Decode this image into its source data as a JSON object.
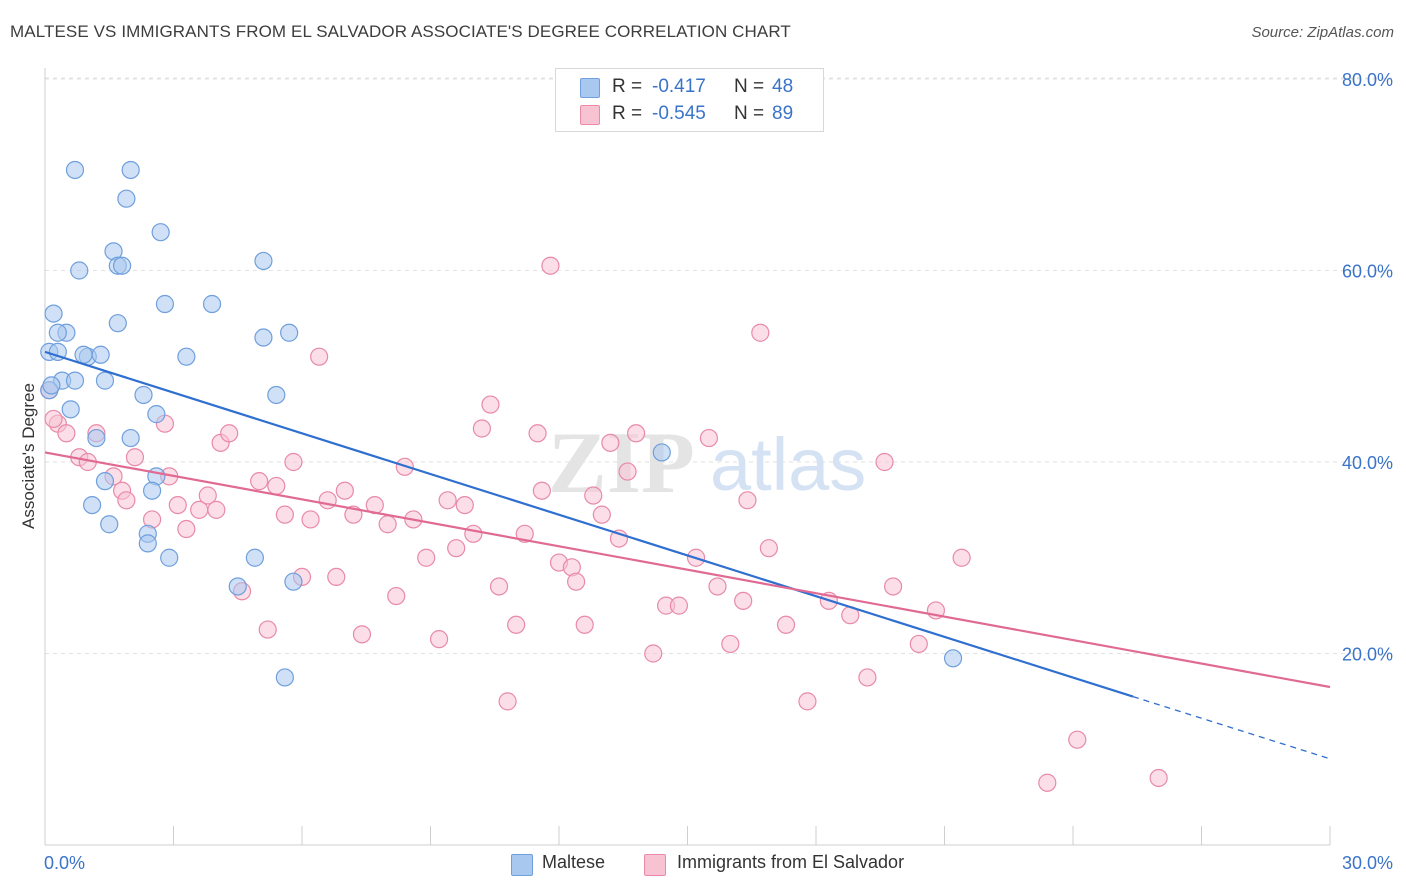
{
  "header": {
    "title": "MALTESE VS IMMIGRANTS FROM EL SALVADOR ASSOCIATE'S DEGREE CORRELATION CHART",
    "source": "Source: ZipAtlas.com"
  },
  "legend_top": {
    "rows": [
      {
        "r_label": "R =",
        "r_value": "-0.417",
        "n_label": "N =",
        "n_value": "48",
        "color": "#a9c8f0",
        "border": "#6f9fdc"
      },
      {
        "r_label": "R =",
        "r_value": "-0.545",
        "n_label": "N =",
        "n_value": "89",
        "color": "#f7c3d3",
        "border": "#e88aa8"
      }
    ]
  },
  "legend_bottom": {
    "items": [
      {
        "label": "Maltese",
        "color": "#a9c8f0",
        "border": "#6f9fdc"
      },
      {
        "label": "Immigrants from El Salvador",
        "color": "#f7c3d3",
        "border": "#e88aa8"
      }
    ]
  },
  "watermark": {
    "zip": "ZIP",
    "atlas": "atlas"
  },
  "chart_data": {
    "type": "scatter",
    "title": "MALTESE VS IMMIGRANTS FROM EL SALVADOR ASSOCIATE'S DEGREE CORRELATION CHART",
    "xlabel": "",
    "ylabel": "Associate's Degree",
    "xlim": [
      0,
      30
    ],
    "ylim": [
      0,
      82
    ],
    "x_tick_labels": [
      "0.0%",
      "30.0%"
    ],
    "y_ticks": [
      20,
      40,
      60,
      80
    ],
    "y_tick_labels": [
      "20.0%",
      "40.0%",
      "60.0%",
      "80.0%"
    ],
    "grid": true,
    "legend_placement": "top-center",
    "series": [
      {
        "name": "Maltese",
        "color": "#a9c8f0",
        "edge_color": "#6f9fdc",
        "line_color": "#2f6fd0",
        "R": -0.417,
        "N": 48,
        "trend": {
          "x0": 0,
          "y0": 51.5,
          "x1": 25.4,
          "y1": 15.5,
          "dashed_to_x": 30,
          "dashed_to_y": 9.0
        },
        "points": [
          [
            0.7,
            70.5
          ],
          [
            2.0,
            70.5
          ],
          [
            1.9,
            67.5
          ],
          [
            2.7,
            64.0
          ],
          [
            1.6,
            62.0
          ],
          [
            5.1,
            61.0
          ],
          [
            0.8,
            60.0
          ],
          [
            1.7,
            60.5
          ],
          [
            2.8,
            56.5
          ],
          [
            3.9,
            56.5
          ],
          [
            0.2,
            55.5
          ],
          [
            1.7,
            54.5
          ],
          [
            0.5,
            53.5
          ],
          [
            5.7,
            53.5
          ],
          [
            5.1,
            53.0
          ],
          [
            0.1,
            51.5
          ],
          [
            0.3,
            51.5
          ],
          [
            1.0,
            51.0
          ],
          [
            1.3,
            51.2
          ],
          [
            3.3,
            51.0
          ],
          [
            0.4,
            48.5
          ],
          [
            0.7,
            48.5
          ],
          [
            1.4,
            48.5
          ],
          [
            0.1,
            47.5
          ],
          [
            2.3,
            47.0
          ],
          [
            5.4,
            47.0
          ],
          [
            0.6,
            45.5
          ],
          [
            2.6,
            45.0
          ],
          [
            1.2,
            42.5
          ],
          [
            2.0,
            42.5
          ],
          [
            14.4,
            41.0
          ],
          [
            1.4,
            38.0
          ],
          [
            2.6,
            38.5
          ],
          [
            2.5,
            37.0
          ],
          [
            1.1,
            35.5
          ],
          [
            1.5,
            33.5
          ],
          [
            2.4,
            32.5
          ],
          [
            2.4,
            31.5
          ],
          [
            2.9,
            30.0
          ],
          [
            4.9,
            30.0
          ],
          [
            4.5,
            27.0
          ],
          [
            5.8,
            27.5
          ],
          [
            5.6,
            17.5
          ],
          [
            21.2,
            19.5
          ],
          [
            0.15,
            48.0
          ],
          [
            0.9,
            51.2
          ],
          [
            1.8,
            60.5
          ],
          [
            0.3,
            53.5
          ]
        ]
      },
      {
        "name": "Immigrants from El Salvador",
        "color": "#f7c3d3",
        "edge_color": "#e88aa8",
        "line_color": "#e06a93",
        "R": -0.545,
        "N": 89,
        "trend": {
          "x0": 0,
          "y0": 41.0,
          "x1": 30,
          "y1": 16.5
        },
        "points": [
          [
            0.1,
            47.5
          ],
          [
            0.3,
            44.0
          ],
          [
            0.5,
            43.0
          ],
          [
            0.8,
            40.5
          ],
          [
            1.0,
            40.0
          ],
          [
            1.2,
            43.0
          ],
          [
            1.6,
            38.5
          ],
          [
            1.8,
            37.0
          ],
          [
            1.9,
            36.0
          ],
          [
            2.1,
            40.5
          ],
          [
            2.5,
            34.0
          ],
          [
            2.8,
            44.0
          ],
          [
            2.9,
            38.5
          ],
          [
            3.1,
            35.5
          ],
          [
            3.3,
            33.0
          ],
          [
            3.6,
            35.0
          ],
          [
            3.8,
            36.5
          ],
          [
            4.0,
            35.0
          ],
          [
            4.1,
            42.0
          ],
          [
            4.3,
            43.0
          ],
          [
            4.6,
            26.5
          ],
          [
            5.0,
            38.0
          ],
          [
            5.2,
            22.5
          ],
          [
            5.4,
            37.5
          ],
          [
            5.6,
            34.5
          ],
          [
            5.8,
            40.0
          ],
          [
            6.0,
            28.0
          ],
          [
            6.2,
            34.0
          ],
          [
            6.4,
            51.0
          ],
          [
            6.6,
            36.0
          ],
          [
            6.8,
            28.0
          ],
          [
            7.0,
            37.0
          ],
          [
            7.2,
            34.5
          ],
          [
            7.4,
            22.0
          ],
          [
            7.7,
            35.5
          ],
          [
            8.0,
            33.5
          ],
          [
            8.2,
            26.0
          ],
          [
            8.4,
            39.5
          ],
          [
            8.6,
            34.0
          ],
          [
            8.9,
            30.0
          ],
          [
            9.2,
            21.5
          ],
          [
            9.4,
            36.0
          ],
          [
            9.6,
            31.0
          ],
          [
            9.8,
            35.5
          ],
          [
            10.0,
            32.5
          ],
          [
            10.2,
            43.5
          ],
          [
            10.4,
            46.0
          ],
          [
            10.6,
            27.0
          ],
          [
            10.8,
            15.0
          ],
          [
            11.0,
            23.0
          ],
          [
            11.2,
            32.5
          ],
          [
            11.5,
            43.0
          ],
          [
            11.6,
            37.0
          ],
          [
            11.8,
            60.5
          ],
          [
            12.0,
            29.5
          ],
          [
            12.3,
            29.0
          ],
          [
            12.4,
            27.5
          ],
          [
            12.6,
            23.0
          ],
          [
            12.8,
            36.5
          ],
          [
            13.0,
            34.5
          ],
          [
            13.2,
            42.0
          ],
          [
            13.4,
            32.0
          ],
          [
            13.6,
            39.0
          ],
          [
            13.8,
            43.0
          ],
          [
            14.2,
            20.0
          ],
          [
            14.5,
            25.0
          ],
          [
            14.8,
            25.0
          ],
          [
            15.2,
            30.0
          ],
          [
            15.5,
            42.5
          ],
          [
            15.7,
            27.0
          ],
          [
            16.0,
            21.0
          ],
          [
            16.3,
            25.5
          ],
          [
            16.4,
            36.0
          ],
          [
            16.7,
            53.5
          ],
          [
            16.9,
            31.0
          ],
          [
            17.3,
            23.0
          ],
          [
            17.8,
            15.0
          ],
          [
            18.3,
            25.5
          ],
          [
            18.8,
            24.0
          ],
          [
            19.2,
            17.5
          ],
          [
            19.6,
            40.0
          ],
          [
            19.8,
            27.0
          ],
          [
            20.4,
            21.0
          ],
          [
            20.8,
            24.5
          ],
          [
            21.4,
            30.0
          ],
          [
            23.4,
            6.5
          ],
          [
            24.1,
            11.0
          ],
          [
            26.0,
            7.0
          ],
          [
            0.2,
            44.5
          ]
        ]
      }
    ]
  }
}
